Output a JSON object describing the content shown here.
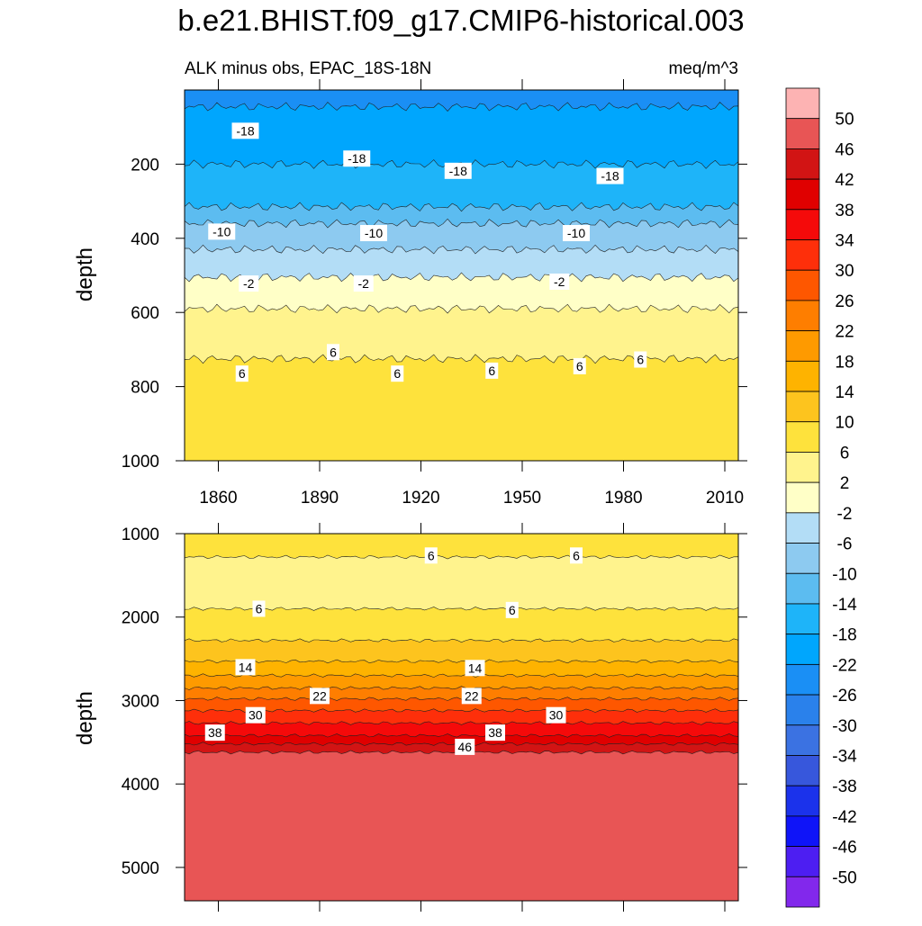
{
  "chart_data": {
    "title": "b.e21.BHIST.f09_g17.CMIP6-historical.003",
    "type": "contour",
    "colorbar": {
      "labels": [
        "50",
        "46",
        "42",
        "38",
        "34",
        "30",
        "26",
        "22",
        "18",
        "14",
        "10",
        "6",
        "2",
        "-2",
        "-6",
        "-10",
        "-14",
        "-18",
        "-22",
        "-26",
        "-30",
        "-34",
        "-38",
        "-42",
        "-46",
        "-50"
      ],
      "colors": [
        "#fdb3b3",
        "#e85555",
        "#d21414",
        "#e00000",
        "#f50a0a",
        "#fe2f0a",
        "#fe5700",
        "#fe7e00",
        "#fe9a00",
        "#feb300",
        "#fdc41e",
        "#fee23c",
        "#fff38d",
        "#ffffc7",
        "#b3ddf6",
        "#8dcaf0",
        "#5cbcf0",
        "#1eb4f9",
        "#00a6fd",
        "#1a8ff5",
        "#2a81eb",
        "#3b72e2",
        "#3757dc",
        "#1b32eb",
        "#0f14f8",
        "#4d1ef2",
        "#8228ec"
      ]
    },
    "panels": [
      {
        "subtitle_left": "ALK minus obs, EPAC_18S-18N",
        "subtitle_right": "meq/m^3",
        "ylabel": "depth",
        "ylim": [
          1000,
          0
        ],
        "xlim": [
          1850,
          2014
        ],
        "yticks": [
          "200",
          "400",
          "600",
          "800",
          "1000"
        ],
        "ytick_values": [
          200,
          400,
          600,
          800,
          1000
        ],
        "xticks": [
          "1860",
          "1890",
          "1920",
          "1950",
          "1980",
          "2010"
        ],
        "xtick_values": [
          1860,
          1890,
          1920,
          1950,
          1980,
          2010
        ],
        "bands": [
          {
            "value": -22,
            "top": 10,
            "bottom": 45
          },
          {
            "value": -18,
            "top": 45,
            "bottom": 200
          },
          {
            "value": -14,
            "top": 200,
            "bottom": 315
          },
          {
            "value": -10,
            "top": 315,
            "bottom": 360
          },
          {
            "value": -6,
            "top": 360,
            "bottom": 430
          },
          {
            "value": -2,
            "top": 430,
            "bottom": 505
          },
          {
            "value": 2,
            "top": 505,
            "bottom": 590
          },
          {
            "value": 6,
            "top": 590,
            "bottom": 725
          },
          {
            "value": 10,
            "top": 725,
            "bottom": 1000
          }
        ],
        "contour_labels": [
          {
            "text": "-18",
            "x": 1868,
            "y": 110
          },
          {
            "text": "-18",
            "x": 1901,
            "y": 185
          },
          {
            "text": "-18",
            "x": 1931,
            "y": 218
          },
          {
            "text": "-18",
            "x": 1976,
            "y": 232
          },
          {
            "text": "-10",
            "x": 1861,
            "y": 382
          },
          {
            "text": "-10",
            "x": 1906,
            "y": 386
          },
          {
            "text": "-10",
            "x": 1966,
            "y": 386
          },
          {
            "text": "-2",
            "x": 1869,
            "y": 522
          },
          {
            "text": "-2",
            "x": 1903,
            "y": 522
          },
          {
            "text": "-2",
            "x": 1961,
            "y": 517
          },
          {
            "text": "6",
            "x": 1867,
            "y": 765
          },
          {
            "text": "6",
            "x": 1894,
            "y": 707
          },
          {
            "text": "6",
            "x": 1913,
            "y": 765
          },
          {
            "text": "6",
            "x": 1941,
            "y": 757
          },
          {
            "text": "6",
            "x": 1967,
            "y": 745
          },
          {
            "text": "6",
            "x": 1985,
            "y": 727
          }
        ]
      },
      {
        "subtitle_left": "",
        "subtitle_right": "",
        "ylabel": "depth",
        "ylim": [
          5400,
          1000
        ],
        "xlim": [
          1850,
          2014
        ],
        "yticks": [
          "1000",
          "2000",
          "3000",
          "4000",
          "5000"
        ],
        "ytick_values": [
          1000,
          2000,
          3000,
          4000,
          5000
        ],
        "xticks": [],
        "xtick_values": [
          1860,
          1890,
          1920,
          1950,
          1980,
          2010
        ],
        "bands": [
          {
            "value": 10,
            "top": 1000,
            "bottom": 1280
          },
          {
            "value": 6,
            "top": 1280,
            "bottom": 1900
          },
          {
            "value": 10,
            "top": 1900,
            "bottom": 2280
          },
          {
            "value": 14,
            "top": 2280,
            "bottom": 2530
          },
          {
            "value": 18,
            "top": 2530,
            "bottom": 2700
          },
          {
            "value": 22,
            "top": 2700,
            "bottom": 2850
          },
          {
            "value": 26,
            "top": 2850,
            "bottom": 2980
          },
          {
            "value": 30,
            "top": 2980,
            "bottom": 3120
          },
          {
            "value": 34,
            "top": 3120,
            "bottom": 3270
          },
          {
            "value": 38,
            "top": 3270,
            "bottom": 3420
          },
          {
            "value": 42,
            "top": 3420,
            "bottom": 3520
          },
          {
            "value": 46,
            "top": 3520,
            "bottom": 3620
          },
          {
            "value": 50,
            "top": 3620,
            "bottom": 5400
          }
        ],
        "contour_labels": [
          {
            "text": "6",
            "x": 1923,
            "y": 1262
          },
          {
            "text": "6",
            "x": 1966,
            "y": 1262
          },
          {
            "text": "6",
            "x": 1872,
            "y": 1900
          },
          {
            "text": "6",
            "x": 1947,
            "y": 1915
          },
          {
            "text": "14",
            "x": 1868,
            "y": 2600
          },
          {
            "text": "14",
            "x": 1936,
            "y": 2610
          },
          {
            "text": "22",
            "x": 1890,
            "y": 2945
          },
          {
            "text": "22",
            "x": 1935,
            "y": 2945
          },
          {
            "text": "30",
            "x": 1871,
            "y": 3175
          },
          {
            "text": "30",
            "x": 1960,
            "y": 3175
          },
          {
            "text": "38",
            "x": 1859,
            "y": 3385
          },
          {
            "text": "38",
            "x": 1942,
            "y": 3385
          },
          {
            "text": "46",
            "x": 1933,
            "y": 3555
          }
        ]
      }
    ]
  }
}
